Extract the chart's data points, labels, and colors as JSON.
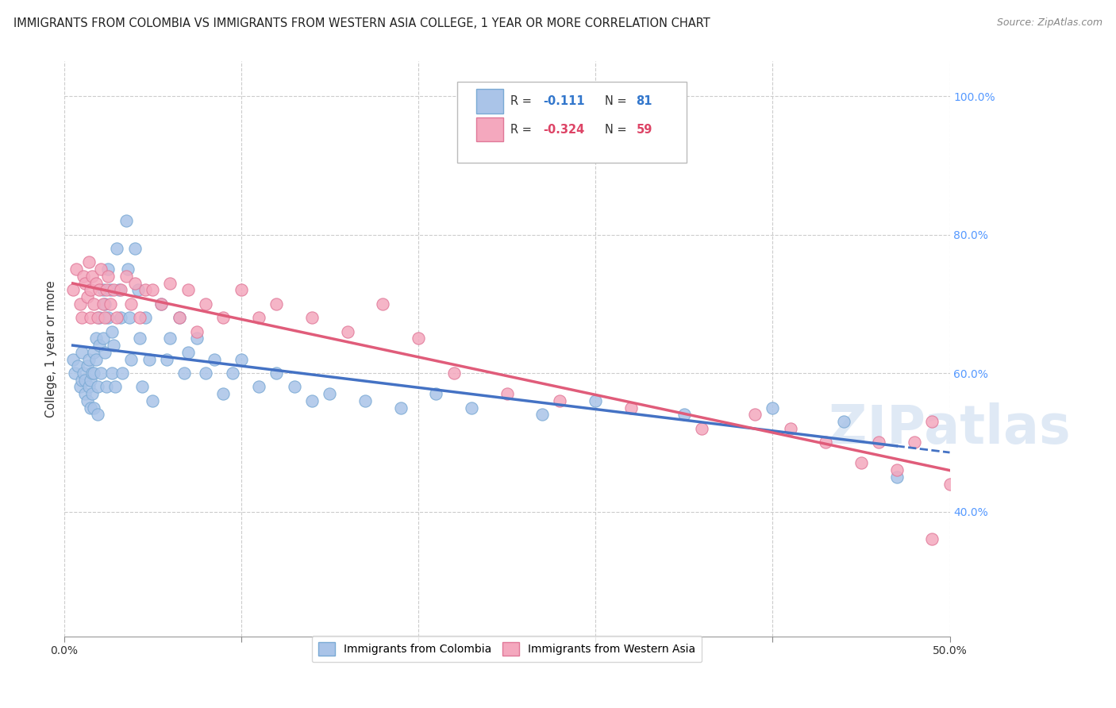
{
  "title": "IMMIGRANTS FROM COLOMBIA VS IMMIGRANTS FROM WESTERN ASIA COLLEGE, 1 YEAR OR MORE CORRELATION CHART",
  "source": "Source: ZipAtlas.com",
  "ylabel": "College, 1 year or more",
  "xlim": [
    0.0,
    0.5
  ],
  "ylim": [
    0.22,
    1.05
  ],
  "colombia_color": "#aac4e8",
  "colombia_edge": "#7aaad4",
  "western_asia_color": "#f4a8be",
  "western_asia_edge": "#e07898",
  "colombia_R": -0.111,
  "colombia_N": 81,
  "western_asia_R": -0.324,
  "western_asia_N": 59,
  "trend_colombia_color": "#4472c4",
  "trend_western_asia_color": "#e05c7a",
  "background_color": "#ffffff",
  "grid_color": "#cccccc",
  "legend_label_colombia": "Immigrants from Colombia",
  "legend_label_western_asia": "Immigrants from Western Asia",
  "colombia_scatter_x": [
    0.005,
    0.006,
    0.008,
    0.009,
    0.01,
    0.01,
    0.011,
    0.012,
    0.012,
    0.013,
    0.013,
    0.014,
    0.014,
    0.015,
    0.015,
    0.016,
    0.016,
    0.017,
    0.017,
    0.017,
    0.018,
    0.018,
    0.019,
    0.019,
    0.02,
    0.02,
    0.021,
    0.022,
    0.022,
    0.023,
    0.023,
    0.024,
    0.025,
    0.025,
    0.026,
    0.027,
    0.027,
    0.028,
    0.029,
    0.03,
    0.031,
    0.032,
    0.033,
    0.035,
    0.036,
    0.037,
    0.038,
    0.04,
    0.042,
    0.043,
    0.044,
    0.046,
    0.048,
    0.05,
    0.055,
    0.058,
    0.06,
    0.065,
    0.068,
    0.07,
    0.075,
    0.08,
    0.085,
    0.09,
    0.095,
    0.1,
    0.11,
    0.12,
    0.13,
    0.14,
    0.15,
    0.17,
    0.19,
    0.21,
    0.23,
    0.27,
    0.3,
    0.35,
    0.4,
    0.44,
    0.47
  ],
  "colombia_scatter_y": [
    0.62,
    0.6,
    0.61,
    0.58,
    0.63,
    0.59,
    0.6,
    0.57,
    0.59,
    0.56,
    0.61,
    0.58,
    0.62,
    0.59,
    0.55,
    0.6,
    0.57,
    0.63,
    0.6,
    0.55,
    0.65,
    0.62,
    0.58,
    0.54,
    0.68,
    0.64,
    0.6,
    0.72,
    0.65,
    0.7,
    0.63,
    0.58,
    0.75,
    0.68,
    0.72,
    0.66,
    0.6,
    0.64,
    0.58,
    0.78,
    0.72,
    0.68,
    0.6,
    0.82,
    0.75,
    0.68,
    0.62,
    0.78,
    0.72,
    0.65,
    0.58,
    0.68,
    0.62,
    0.56,
    0.7,
    0.62,
    0.65,
    0.68,
    0.6,
    0.63,
    0.65,
    0.6,
    0.62,
    0.57,
    0.6,
    0.62,
    0.58,
    0.6,
    0.58,
    0.56,
    0.57,
    0.56,
    0.55,
    0.57,
    0.55,
    0.54,
    0.56,
    0.54,
    0.55,
    0.53,
    0.45
  ],
  "western_asia_scatter_x": [
    0.005,
    0.007,
    0.009,
    0.01,
    0.011,
    0.012,
    0.013,
    0.014,
    0.015,
    0.015,
    0.016,
    0.017,
    0.018,
    0.019,
    0.02,
    0.021,
    0.022,
    0.023,
    0.024,
    0.025,
    0.026,
    0.028,
    0.03,
    0.032,
    0.035,
    0.038,
    0.04,
    0.043,
    0.046,
    0.05,
    0.055,
    0.06,
    0.065,
    0.07,
    0.075,
    0.08,
    0.09,
    0.1,
    0.11,
    0.12,
    0.14,
    0.16,
    0.18,
    0.2,
    0.22,
    0.25,
    0.28,
    0.32,
    0.36,
    0.39,
    0.41,
    0.43,
    0.45,
    0.46,
    0.47,
    0.48,
    0.49,
    0.49,
    0.5
  ],
  "western_asia_scatter_y": [
    0.72,
    0.75,
    0.7,
    0.68,
    0.74,
    0.73,
    0.71,
    0.76,
    0.72,
    0.68,
    0.74,
    0.7,
    0.73,
    0.68,
    0.72,
    0.75,
    0.7,
    0.68,
    0.72,
    0.74,
    0.7,
    0.72,
    0.68,
    0.72,
    0.74,
    0.7,
    0.73,
    0.68,
    0.72,
    0.72,
    0.7,
    0.73,
    0.68,
    0.72,
    0.66,
    0.7,
    0.68,
    0.72,
    0.68,
    0.7,
    0.68,
    0.66,
    0.7,
    0.65,
    0.6,
    0.57,
    0.56,
    0.55,
    0.52,
    0.54,
    0.52,
    0.5,
    0.47,
    0.5,
    0.46,
    0.5,
    0.53,
    0.36,
    0.44
  ]
}
